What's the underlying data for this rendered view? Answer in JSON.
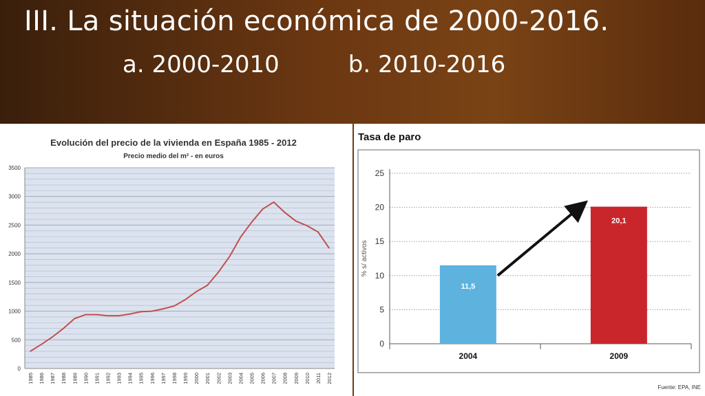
{
  "slide": {
    "title": "III. La situación económica de 2000-2016.",
    "sub_a": "a. 2000-2010",
    "sub_b": "b. 2010-2016"
  },
  "chart_data": [
    {
      "type": "line",
      "title": "Evolución del precio de la vivienda en España 1985 - 2012",
      "subtitle": "Precio medio del m² - en euros",
      "x": [
        "1985",
        "1986",
        "1987",
        "1988",
        "1989",
        "1990",
        "1991",
        "1992",
        "1993",
        "1994",
        "1995",
        "1996",
        "1997",
        "1998",
        "1999",
        "2000",
        "2001",
        "2002",
        "2003",
        "2004",
        "2005",
        "2006",
        "2007",
        "2008",
        "2009",
        "2010",
        "2011",
        "2012"
      ],
      "series": [
        {
          "values": [
            300,
            420,
            550,
            700,
            870,
            940,
            940,
            920,
            920,
            950,
            990,
            1000,
            1040,
            1090,
            1200,
            1340,
            1450,
            1680,
            1950,
            2290,
            2550,
            2780,
            2900,
            2720,
            2570,
            2490,
            2380,
            2100
          ],
          "color": "#c0504d"
        }
      ],
      "ylim": [
        0,
        3500
      ],
      "yticks": [
        0,
        500,
        1000,
        1500,
        2000,
        2500,
        3000,
        3500
      ],
      "grid": true,
      "colors": {
        "line": "#c0504d",
        "grid_fill": "#dce3ee",
        "grid_line": "#a9b9d0"
      }
    },
    {
      "type": "bar",
      "title": "Tasa de paro",
      "ylabel": "% s/ activos",
      "categories": [
        "2004",
        "2009"
      ],
      "values": [
        11.5,
        20.1
      ],
      "value_labels": [
        "11,5",
        "20,1"
      ],
      "ylim": [
        0,
        25
      ],
      "yticks": [
        0,
        5,
        10,
        15,
        20,
        25
      ],
      "grid": true,
      "colors": [
        "#5db3de",
        "#c9262b"
      ],
      "source": "Fuente: EPA, INE"
    }
  ]
}
